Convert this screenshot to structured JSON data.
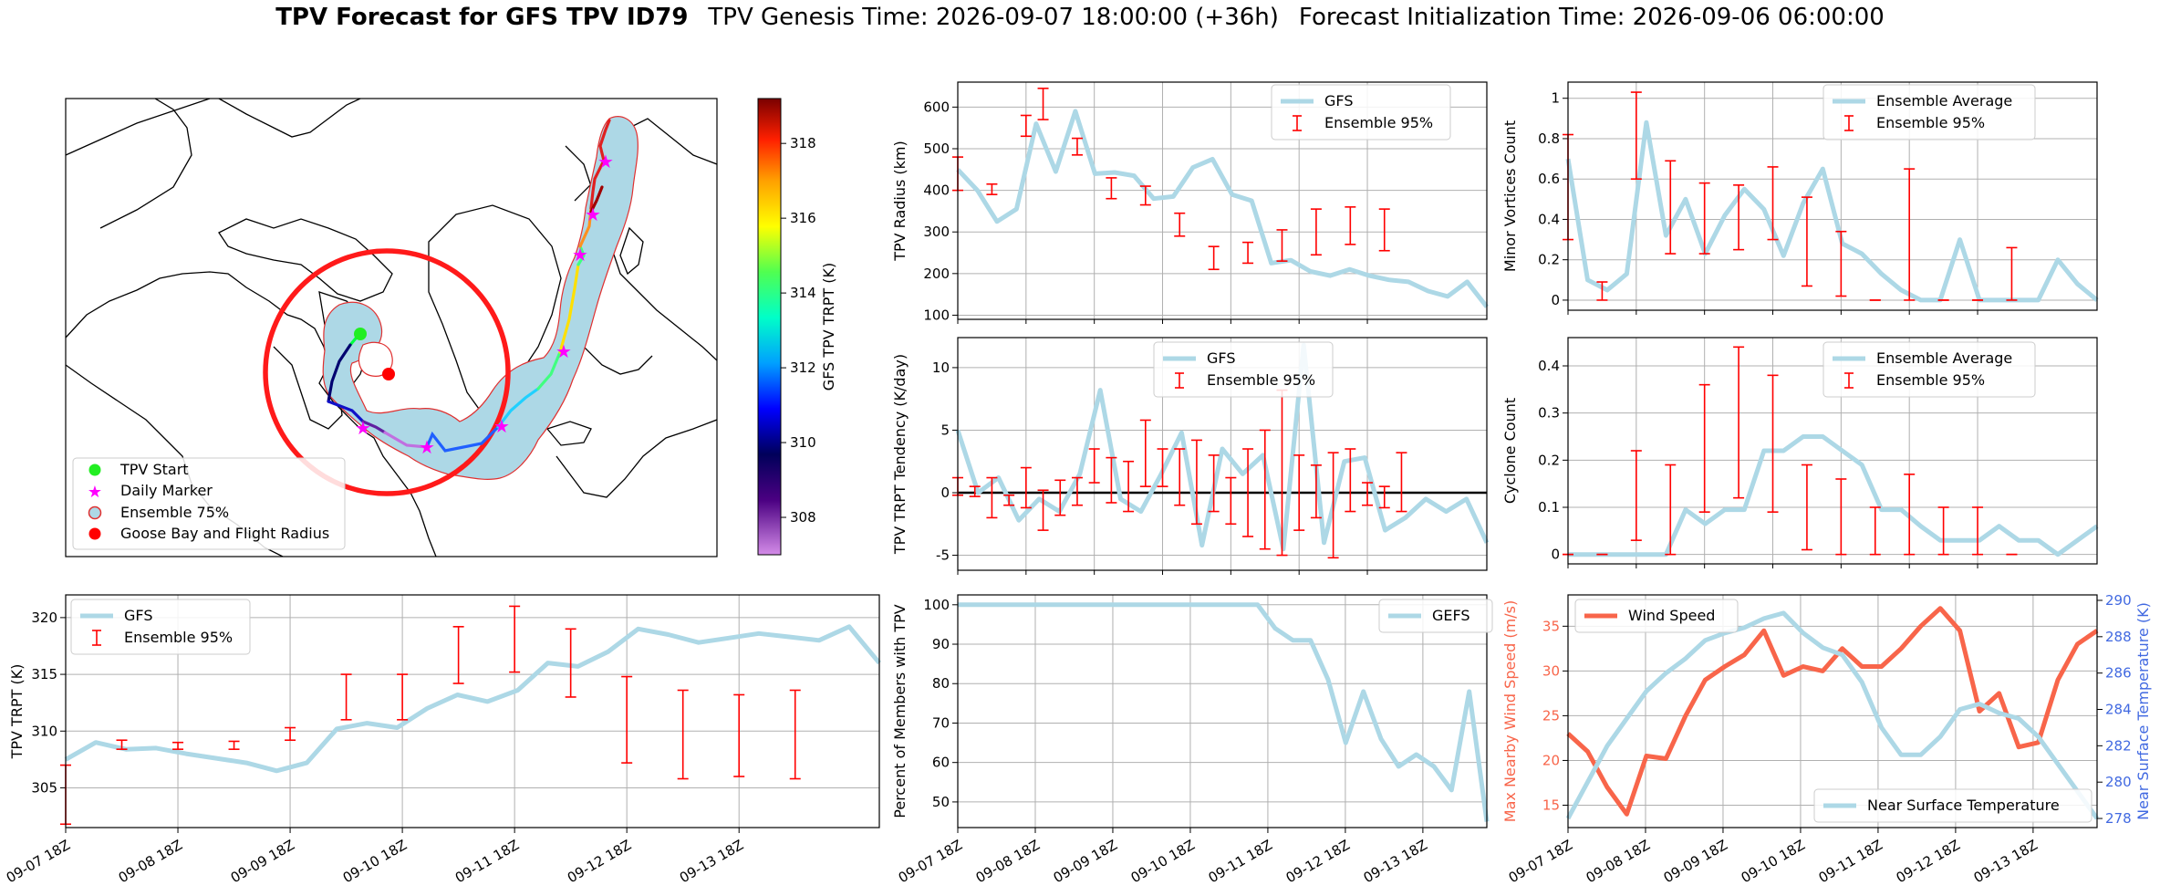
{
  "title": {
    "main": "TPV Forecast for GFS TPV ID79",
    "genesis": "TPV Genesis Time: 2026-09-07 18:00:00 (+36h)",
    "init": "Forecast Initialization Time: 2026-09-06 06:00:00"
  },
  "colors": {
    "gfs": "#add8e6",
    "ensemble": "#ff0000",
    "wind": "#f8654a",
    "temp_axis": "#4169e1",
    "wind_axis": "#f8654a"
  },
  "date_ticks": [
    "09-07 18Z",
    "09-08 18Z",
    "09-09 18Z",
    "09-10 18Z",
    "09-11 18Z",
    "09-12 18Z",
    "09-13 18Z"
  ],
  "map": {
    "legend": [
      "TPV Start",
      "Daily Marker",
      "Ensemble 75%",
      "Goose Bay and Flight Radius"
    ],
    "colorbar_label": "GFS TPV TRPT (K)",
    "colorbar_ticks": [
      "308",
      "310",
      "312",
      "314",
      "316",
      "318"
    ],
    "colorbar_range": [
      307.0,
      319.2
    ]
  },
  "chart_data": [
    {
      "id": "radius",
      "type": "line",
      "ylabel": "TPV Radius (km)",
      "ylim": [
        90,
        660
      ],
      "yticks": [
        100,
        200,
        300,
        400,
        500,
        600
      ],
      "legend": [
        "GFS",
        "Ensemble 95%"
      ],
      "legend_pos": "top-right",
      "xlim": [
        0,
        31
      ],
      "grid": true,
      "series": [
        {
          "name": "GFS",
          "values": [
            450,
            400,
            325,
            355,
            560,
            445,
            590,
            440,
            443,
            435,
            380,
            385,
            455,
            475,
            390,
            375,
            225,
            232,
            205,
            195,
            210,
            195,
            185,
            180,
            158,
            145,
            180,
            120
          ]
        }
      ],
      "errorbars": [
        [
          0,
          400,
          480
        ],
        [
          4,
          390,
          415
        ],
        [
          8,
          530,
          580
        ],
        [
          10,
          570,
          645
        ],
        [
          14,
          485,
          525
        ],
        [
          18,
          380,
          430
        ],
        [
          22,
          365,
          410
        ],
        [
          26,
          290,
          345
        ],
        [
          30,
          210,
          265
        ],
        [
          34,
          225,
          275
        ],
        [
          38,
          230,
          305
        ],
        [
          42,
          245,
          355
        ],
        [
          46,
          270,
          360
        ],
        [
          50,
          255,
          355
        ]
      ]
    },
    {
      "id": "minor",
      "type": "line",
      "ylabel": "Minor Vortices Count",
      "ylim": [
        -0.05,
        1.08
      ],
      "yticks": [
        0.0,
        0.2,
        0.4,
        0.6,
        0.8,
        1.0
      ],
      "legend": [
        "Ensemble Average",
        "Ensemble 95%"
      ],
      "legend_pos": "top-right",
      "xlim": [
        0,
        31
      ],
      "grid": true,
      "series": [
        {
          "name": "Ensemble Average",
          "values": [
            0.7,
            0.1,
            0.05,
            0.13,
            0.88,
            0.32,
            0.5,
            0.23,
            0.42,
            0.55,
            0.45,
            0.22,
            0.48,
            0.65,
            0.28,
            0.23,
            0.13,
            0.05,
            0.0,
            0.0,
            0.3,
            0.0,
            0.0,
            0.0,
            0.0,
            0.2,
            0.08,
            0.0
          ]
        }
      ],
      "errorbars": [
        [
          0,
          0.3,
          0.82
        ],
        [
          4,
          0.0,
          0.09
        ],
        [
          8,
          0.6,
          1.03
        ],
        [
          12,
          0.23,
          0.69
        ],
        [
          16,
          0.23,
          0.58
        ],
        [
          20,
          0.25,
          0.57
        ],
        [
          24,
          0.3,
          0.66
        ],
        [
          28,
          0.07,
          0.51
        ],
        [
          32,
          0.02,
          0.34
        ],
        [
          36,
          0.0,
          0.0
        ],
        [
          40,
          0.0,
          0.65
        ],
        [
          44,
          0.0,
          0.0
        ],
        [
          48,
          0.0,
          0.0
        ],
        [
          52,
          0.0,
          0.26
        ]
      ]
    },
    {
      "id": "tendency",
      "type": "line",
      "ylabel": "TPV TRPT Tendency (K/day)",
      "ylim": [
        -6.2,
        12.4
      ],
      "yticks": [
        -5,
        0,
        5,
        10
      ],
      "legend": [
        "GFS",
        "Ensemble 95%"
      ],
      "legend_pos": "top-center",
      "xlim": [
        0,
        31
      ],
      "grid": true,
      "zero_line": true,
      "series": [
        {
          "name": "GFS",
          "values": [
            5.0,
            0.0,
            1.2,
            -2.2,
            -0.5,
            -1.5,
            1.5,
            8.2,
            -0.5,
            -1.5,
            1.5,
            4.8,
            -4.2,
            3.5,
            1.5,
            3.0,
            -4.5,
            11.8,
            -4.0,
            2.5,
            2.8,
            -3.0,
            -2.0,
            -0.5,
            -1.5,
            -0.5,
            -4.0
          ]
        }
      ],
      "errorbars": [
        [
          0,
          -0.2,
          1.2
        ],
        [
          1,
          -0.3,
          0.5
        ],
        [
          2,
          -2.0,
          1.2
        ],
        [
          3,
          -1.0,
          -0.2
        ],
        [
          4,
          -1.2,
          2.0
        ],
        [
          5,
          -3.0,
          0.2
        ],
        [
          6,
          -1.8,
          1.0
        ],
        [
          7,
          -1.0,
          1.2
        ],
        [
          8,
          0.8,
          3.5
        ],
        [
          9,
          -0.8,
          2.8
        ],
        [
          10,
          -1.5,
          2.5
        ],
        [
          11,
          0.5,
          5.8
        ],
        [
          12,
          0.5,
          3.5
        ],
        [
          13,
          -1.0,
          3.5
        ],
        [
          14,
          -2.5,
          4.2
        ],
        [
          15,
          -1.5,
          3.0
        ],
        [
          16,
          -2.5,
          1.2
        ],
        [
          17,
          -3.5,
          3.5
        ],
        [
          18,
          -4.5,
          5.0
        ],
        [
          19,
          -5.0,
          8.2
        ],
        [
          20,
          -3.0,
          3.0
        ],
        [
          21,
          -2.0,
          2.2
        ],
        [
          22,
          -5.2,
          3.2
        ],
        [
          23,
          -1.5,
          3.5
        ],
        [
          24,
          -1.0,
          0.8
        ],
        [
          25,
          -1.2,
          0.5
        ],
        [
          26,
          -1.5,
          3.2
        ]
      ]
    },
    {
      "id": "cyclone",
      "type": "line",
      "ylabel": "Cyclone Count",
      "ylim": [
        -0.02,
        0.46
      ],
      "yticks": [
        0.0,
        0.1,
        0.2,
        0.3,
        0.4
      ],
      "legend": [
        "Ensemble Average",
        "Ensemble 95%"
      ],
      "legend_pos": "top-right",
      "xlim": [
        0,
        31
      ],
      "grid": true,
      "series": [
        {
          "name": "Ensemble Average",
          "values": [
            0,
            0,
            0,
            0,
            0,
            0,
            0.095,
            0.065,
            0.095,
            0.095,
            0.22,
            0.22,
            0.25,
            0.25,
            0.22,
            0.19,
            0.095,
            0.095,
            0.06,
            0.03,
            0.03,
            0.03,
            0.06,
            0.03,
            0.03,
            0.0,
            0.03,
            0.06
          ]
        }
      ],
      "errorbars": [
        [
          0,
          0,
          0
        ],
        [
          4,
          0,
          0
        ],
        [
          8,
          0.03,
          0.22
        ],
        [
          12,
          0.0,
          0.19
        ],
        [
          16,
          0.09,
          0.36
        ],
        [
          20,
          0.12,
          0.44
        ],
        [
          24,
          0.09,
          0.38
        ],
        [
          28,
          0.01,
          0.19
        ],
        [
          32,
          0.0,
          0.16
        ],
        [
          36,
          0.0,
          0.1
        ],
        [
          40,
          0.0,
          0.17
        ],
        [
          44,
          0.0,
          0.1
        ],
        [
          48,
          0.0,
          0.1
        ],
        [
          52,
          0.0,
          0.0
        ]
      ]
    },
    {
      "id": "trpt",
      "type": "line",
      "ylabel": "TPV TRPT (K)",
      "ylim": [
        301.5,
        322
      ],
      "yticks": [
        305,
        310,
        315,
        320
      ],
      "legend": [
        "GFS",
        "Ensemble 95%"
      ],
      "legend_pos": "top-left",
      "xlim": [
        0,
        29
      ],
      "grid": true,
      "series": [
        {
          "name": "GFS",
          "values": [
            307.5,
            309.0,
            308.4,
            308.5,
            308.0,
            307.6,
            307.2,
            306.5,
            307.2,
            310.2,
            310.7,
            310.3,
            312.0,
            313.2,
            312.6,
            313.6,
            316.0,
            315.7,
            317.0,
            319.0,
            318.5,
            317.8,
            318.2,
            318.6,
            318.3,
            318.0,
            319.2,
            316.0
          ]
        }
      ],
      "errorbars": [
        [
          0,
          301.8,
          307.0
        ],
        [
          4,
          308.4,
          309.2
        ],
        [
          8,
          308.4,
          309.0
        ],
        [
          12,
          308.4,
          309.1
        ],
        [
          16,
          309.2,
          310.3
        ],
        [
          20,
          311.0,
          315.0
        ],
        [
          24,
          311.0,
          315.0
        ],
        [
          28,
          314.2,
          319.2
        ],
        [
          32,
          315.2,
          321.0
        ],
        [
          36,
          313.0,
          319.0
        ],
        [
          40,
          307.2,
          314.8
        ],
        [
          44,
          305.8,
          313.6
        ],
        [
          48,
          306.0,
          313.2
        ],
        [
          52,
          305.8,
          313.6
        ]
      ]
    },
    {
      "id": "percent",
      "type": "line",
      "ylabel": "Percent of Members with TPV",
      "ylim": [
        43.5,
        102.5
      ],
      "yticks": [
        50,
        60,
        70,
        80,
        90,
        100
      ],
      "legend": [
        "GEFS"
      ],
      "legend_pos": "top-right",
      "xlim": [
        0,
        27.3
      ],
      "grid": true,
      "series": [
        {
          "name": "GEFS",
          "values": [
            100,
            100,
            100,
            100,
            100,
            100,
            100,
            100,
            100,
            100,
            100,
            100,
            100,
            100,
            100,
            100,
            100,
            100,
            94,
            91,
            91,
            81,
            65,
            78,
            66,
            59,
            62,
            59,
            53,
            78,
            45
          ]
        }
      ]
    },
    {
      "id": "wind_temp",
      "type": "line",
      "ylabel": "Max Nearby Wind Speed (m/s)",
      "ylim": [
        12.5,
        38.5
      ],
      "yticks": [
        15,
        20,
        25,
        30,
        35
      ],
      "y2label": "Near Surface Temperature (K)",
      "y2lim": [
        277.5,
        290.3
      ],
      "y2ticks": [
        278,
        280,
        282,
        284,
        286,
        288,
        290
      ],
      "xlim": [
        0,
        27.3
      ],
      "grid": true,
      "series": [
        {
          "name": "Wind Speed",
          "axis": "left",
          "values": [
            23,
            21,
            17,
            14,
            20.5,
            20.2,
            25,
            29,
            30.5,
            31.8,
            34.5,
            29.5,
            30.5,
            30,
            32.5,
            30.5,
            30.5,
            32.5,
            35,
            37,
            34.5,
            25.5,
            27.5,
            21.5,
            22,
            29,
            33,
            34.5
          ]
        },
        {
          "name": "Near Surface Temperature",
          "axis": "right",
          "values": [
            278,
            280,
            282,
            283.5,
            285,
            286,
            286.8,
            287.8,
            288.2,
            288.5,
            289,
            289.3,
            288.2,
            287.4,
            287,
            285.5,
            283,
            281.5,
            281.5,
            282.5,
            284,
            284.3,
            283.8,
            283.5,
            282.5,
            281,
            279.5,
            278
          ]
        }
      ],
      "legend_left": [
        "Wind Speed"
      ],
      "legend_right": [
        "Near Surface Temperature"
      ]
    }
  ]
}
